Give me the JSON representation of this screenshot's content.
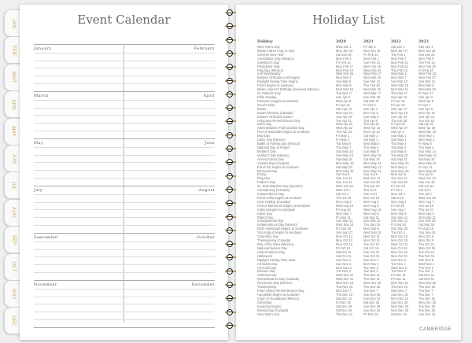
{
  "tabs": [
    "JAN",
    "FEB",
    "MAR",
    "APR",
    "MAY",
    "JUN",
    "JUL",
    "AUG",
    "SEP",
    "OCT",
    "NOV",
    "DEC"
  ],
  "colors": {
    "tab_text": "#c9a14c",
    "ring_wire": "#c9a14c"
  },
  "event_calendar": {
    "title": "Event Calendar",
    "sections": [
      {
        "left": "January",
        "right": "February"
      },
      {
        "left": "March",
        "right": "April"
      },
      {
        "left": "May",
        "right": "June"
      },
      {
        "left": "July",
        "right": "August"
      },
      {
        "left": "September",
        "right": "October"
      },
      {
        "left": "November",
        "right": "December"
      }
    ]
  },
  "holiday_list": {
    "title": "Holiday List",
    "headers": [
      "Holiday",
      "2020",
      "2021",
      "2022",
      "2023"
    ],
    "rows": [
      [
        "New Year's Day",
        "Wed Jan 1",
        "Fri Jan 1",
        "Sat Jan 1",
        "Sun Jan 1"
      ],
      [
        "Martin Luther King Jr. Day",
        "Mon Jan 20",
        "Mon Jan 18",
        "Mon Jan 17",
        "Mon Jan 16"
      ],
      [
        "Chinese New Year",
        "Sat Jan 25",
        "Fri Feb 12",
        "Tue Feb 1",
        "Sun Jan 22"
      ],
      [
        "Constitution Day (Mexico)",
        "Mon Feb 3",
        "Mon Feb 1",
        "Mon Feb 7",
        "Mon Feb 6"
      ],
      [
        "Valentine's Day",
        "Fri Feb 14",
        "Sun Feb 14",
        "Mon Feb 14",
        "Tue Feb 14"
      ],
      [
        "Presidents' Day",
        "Mon Feb 17",
        "Mon Feb 15",
        "Mon Feb 21",
        "Mon Feb 20"
      ],
      [
        "Flag Day (Mexico)",
        "Mon Feb 24",
        "Wed Feb 24",
        "Thu Feb 24",
        "Fri Feb 24"
      ],
      [
        "Ash Wednesday",
        "Wed Feb 26",
        "Wed Feb 17",
        "Wed Mar 2",
        "Wed Feb 22"
      ],
      [
        "Eastern Orthodox Lent begins",
        "Mon Mar 2",
        "Mon Mar 15",
        "Mon Mar 7",
        "Mon Feb 27"
      ],
      [
        "Daylight Saving Time begins",
        "Sun Mar 8",
        "Sun Mar 14",
        "Sun Mar 13",
        "Sun Mar 12"
      ],
      [
        "Purim begins at sundown",
        "Mon Mar 9",
        "Thu Feb 25",
        "Wed Mar 16",
        "Mon Mar 6"
      ],
      [
        "Benito Juarez's Birthday observed (Mexico)",
        "Mon Mar 16",
        "Mon Mar 15",
        "Mon Mar 21",
        "Mon Mar 20"
      ],
      [
        "St. Patrick's Day",
        "Tue Mar 17",
        "Wed Mar 17",
        "Thu Mar 17",
        "Fri Mar 17"
      ],
      [
        "Palm Sunday",
        "Sun Apr 5",
        "Sun Mar 28",
        "Sun Apr 10",
        "Sun Apr 2"
      ],
      [
        "Passover begins at sundown",
        "Wed Apr 8",
        "Sat Mar 27",
        "Fri Apr 15",
        "Wed Apr 5"
      ],
      [
        "Good Friday",
        "Fri Apr 10",
        "Fri Apr 2",
        "Fri Apr 15",
        "Fri Apr 7"
      ],
      [
        "Easter",
        "Sun Apr 12",
        "Sun Apr 4",
        "Sun Apr 17",
        "Sun Apr 9"
      ],
      [
        "Easter Monday (Canada)",
        "Mon Apr 13",
        "Mon Apr 5",
        "Mon Apr 18",
        "Mon Apr 10"
      ],
      [
        "Eastern Orthodox Easter",
        "Sun Apr 19",
        "Sun May 2",
        "Sun Apr 24",
        "Sun Apr 16"
      ],
      [
        "Holocaust Remembrance Day",
        "Tue Apr 21",
        "Thu Apr 8",
        "Thu Apr 28",
        "Tue Apr 18"
      ],
      [
        "Earth Day",
        "Wed Apr 22",
        "Thu Apr 22",
        "Fri Apr 22",
        "Sat Apr 22"
      ],
      [
        "Administrative Professionals Day",
        "Wed Apr 22",
        "Wed Apr 21",
        "Wed Apr 27",
        "Wed Apr 26"
      ],
      [
        "First of Ramadan begins at sundown",
        "Thu Apr 23",
        "Mon Apr 12",
        "Sat Apr 2",
        "Wed Mar 22"
      ],
      [
        "May Day",
        "Fri May 1",
        "Sat May 1",
        "Sun May 1",
        "Mon May 1"
      ],
      [
        "Labor Day (Mexico)",
        "Fri May 1",
        "Sat May 1",
        "Sun May 1",
        "Mon May 1"
      ],
      [
        "Battle of Puebla Day (Mexico)",
        "Tue May 5",
        "Wed May 5",
        "Thu May 5",
        "Fri May 5"
      ],
      [
        "National Day of Prayer",
        "Thu May 7",
        "Thu May 6",
        "Thu May 5",
        "Thu May 4"
      ],
      [
        "Mother's Day",
        "Sun May 10",
        "Sun May 9",
        "Sun May 8",
        "Sun May 14"
      ],
      [
        "Mother's Day (Mexico)",
        "Sun May 10",
        "Mon May 10",
        "Tue May 10",
        "Wed May 10"
      ],
      [
        "Armed Forces Day",
        "Sat May 16",
        "Sat May 15",
        "Sat May 21",
        "Sat May 20"
      ],
      [
        "Victoria Day (Canada)",
        "Mon May 18",
        "Mon May 24",
        "Mon May 23",
        "Mon May 22"
      ],
      [
        "Eid al-Fitr begins at sundown",
        "Sat May 23",
        "Wed May 12",
        "Mon May 2",
        "Fri Apr 21"
      ],
      [
        "Memorial Day",
        "Mon May 25",
        "Mon May 31",
        "Mon May 30",
        "Mon May 29"
      ],
      [
        "D-Day",
        "Sat Jun 6",
        "Sun Jun 6",
        "Mon Jun 6",
        "Tue Jun 6"
      ],
      [
        "Flag Day",
        "Sun Jun 14",
        "Mon Jun 14",
        "Tue Jun 14",
        "Wed Jun 14"
      ],
      [
        "Father's Day",
        "Sun Jun 21",
        "Sun Jun 20",
        "Sun Jun 19",
        "Sun Jun 18"
      ],
      [
        "St. Jean Baptiste Day (Quebec)",
        "Wed Jun 24",
        "Thu Jun 24",
        "Fri Jun 24",
        "Sat Jun 24"
      ],
      [
        "Canada Day (Canada)",
        "Wed Jul 1",
        "Thu Jul 1",
        "Fri Jul 1",
        "Sat Jul 1"
      ],
      [
        "Independence Day",
        "Sat Jul 4",
        "Sun Jul 4",
        "Mon Jul 4",
        "Tue Jul 4"
      ],
      [
        "Eid al-Adha begins at sundown",
        "Thu Jul 30",
        "Mon Jul 19",
        "Sat Jul 9",
        "Wed Jun 28"
      ],
      [
        "Civic Holiday (Canada)",
        "Mon Aug 3",
        "Mon Aug 2",
        "Mon Aug 1",
        "Mon Aug 7"
      ],
      [
        "First of Muharram begins at sundown",
        "Wed Aug 19",
        "Mon Aug 9",
        "Fri Jul 29",
        "Tue Jul 18"
      ],
      [
        "Ashura begins at sundown",
        "Fri Aug 28",
        "Wed Aug 18",
        "Sun Aug 7",
        "Thu Jul 27"
      ],
      [
        "Labor Day",
        "Mon Sep 7",
        "Mon Sep 6",
        "Mon Sep 5",
        "Mon Sep 4"
      ],
      [
        "Patriot Day",
        "Fri Sep 11",
        "Sat Sep 11",
        "Sun Sep 11",
        "Mon Sep 11"
      ],
      [
        "Grandparents Day",
        "Sun Sep 13",
        "Sun Sep 12",
        "Sun Sep 11",
        "Sun Sep 10"
      ],
      [
        "Independence Day (Mexico)",
        "Wed Sep 16",
        "Thu Sep 16",
        "Fri Sep 16",
        "Sat Sep 16"
      ],
      [
        "Rosh Hashanah begins at sundown",
        "Fri Sep 18",
        "Mon Sep 6",
        "Sun Sep 25",
        "Fri Sep 15"
      ],
      [
        "Yom Kippur begins at sundown",
        "Sun Sep 27",
        "Wed Sep 15",
        "Tue Oct 4",
        "Sun Sep 24"
      ],
      [
        "Columbus Day",
        "Mon Oct 12",
        "Mon Oct 11",
        "Mon Oct 10",
        "Mon Oct 9"
      ],
      [
        "Thanksgiving (Canada)",
        "Mon Oct 12",
        "Mon Oct 11",
        "Mon Oct 10",
        "Mon Oct 9"
      ],
      [
        "Day of the Race (Mexico)",
        "Mon Oct 12",
        "Tue Oct 12",
        "Wed Oct 12",
        "Thu Oct 12"
      ],
      [
        "National Bosses Day",
        "Fri Oct 16",
        "Sat Oct 16",
        "Sun Oct 16",
        "Mon Oct 16"
      ],
      [
        "United Nations Day",
        "Sat Oct 24",
        "Sun Oct 24",
        "Mon Oct 24",
        "Tue Oct 24"
      ],
      [
        "Halloween",
        "Sat Oct 31",
        "Sun Oct 31",
        "Mon Oct 31",
        "Tue Oct 31"
      ],
      [
        "Daylight Saving Time ends",
        "Sun Nov 1",
        "Sun Nov 7",
        "Sun Nov 6",
        "Sun Nov 5"
      ],
      [
        "All Saints Day",
        "Sun Nov 1",
        "Mon Nov 1",
        "Tue Nov 1",
        "Wed Nov 1"
      ],
      [
        "All Souls Day",
        "Mon Nov 2",
        "Tue Nov 2",
        "Wed Nov 2",
        "Thu Nov 2"
      ],
      [
        "Election Day",
        "Tue Nov 3",
        "Tue Nov 2",
        "Tue Nov 8",
        "Tue Nov 7"
      ],
      [
        "Veterans Day",
        "Wed Nov 11",
        "Thu Nov 11",
        "Fri Nov 11",
        "Sat Nov 11"
      ],
      [
        "Remembrance Day (Canada)",
        "Wed Nov 11",
        "Thu Nov 11",
        "Fri Nov 11",
        "Sat Nov 11"
      ],
      [
        "Revolution Day (Mexico)",
        "Mon Nov 16",
        "Mon Nov 15",
        "Mon Nov 21",
        "Mon Nov 20"
      ],
      [
        "Thanksgiving",
        "Thu Nov 26",
        "Thu Nov 25",
        "Thu Nov 24",
        "Thu Nov 23"
      ],
      [
        "Pearl Harbor Remembrance Day",
        "Mon Dec 7",
        "Tue Dec 7",
        "Wed Dec 7",
        "Thu Dec 7"
      ],
      [
        "Hanukkah begins at sundown",
        "Thu Dec 10",
        "Sun Nov 28",
        "Sun Dec 18",
        "Thu Dec 7"
      ],
      [
        "Virgin of Guadalupe (Mexico)",
        "Sat Dec 12",
        "Sun Dec 12",
        "Mon Dec 12",
        "Tue Dec 12"
      ],
      [
        "Christmas",
        "Fri Dec 25",
        "Sat Dec 25",
        "Sun Dec 25",
        "Mon Dec 25"
      ],
      [
        "Kwanzaa begins",
        "Sat Dec 26",
        "Sun Dec 26",
        "Mon Dec 26",
        "Tue Dec 26"
      ],
      [
        "Boxing Day (Canada)",
        "Sat Dec 26",
        "Sun Dec 26",
        "Mon Dec 26",
        "Tue Dec 26"
      ],
      [
        "New Year's Eve",
        "Thu Dec 31",
        "Fri Dec 31",
        "Sat Dec 31",
        "Sun Dec 31"
      ]
    ],
    "brand": "CAMBRIDGE"
  }
}
